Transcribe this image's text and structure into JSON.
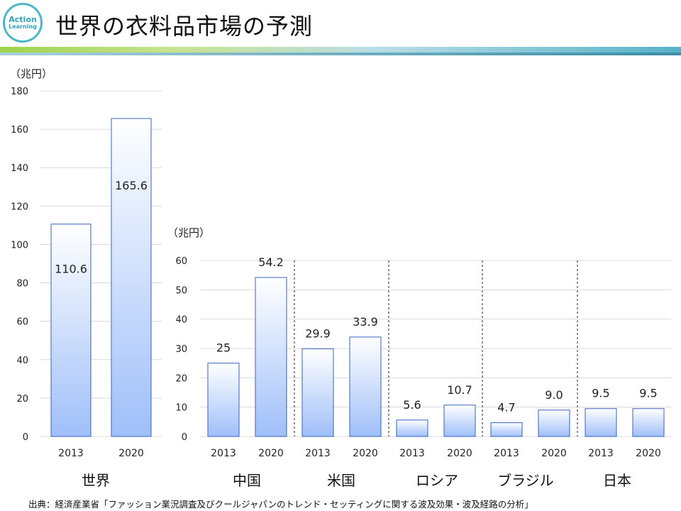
{
  "header": {
    "title": "世界の衣料品市場の予測",
    "logo_line1": "Action",
    "logo_line2": "Learning"
  },
  "theme": {
    "bar_top": "#ffffff",
    "bar_bottom": "#9fbff9",
    "bar_stroke": "#3a62c0",
    "grid": "#d9d9d9"
  },
  "chart_data": [
    {
      "type": "bar",
      "title": "",
      "ylabel": "（兆円）",
      "ylim": [
        0,
        180
      ],
      "yticks": [
        0,
        20,
        40,
        60,
        80,
        100,
        120,
        140,
        160,
        180
      ],
      "groups": [
        {
          "name": "世界",
          "categories": [
            "2013",
            "2020"
          ],
          "values": [
            110.6,
            165.6
          ],
          "labels": [
            "110.6",
            "165.6"
          ]
        }
      ]
    },
    {
      "type": "bar",
      "title": "",
      "ylabel": "（兆円）",
      "ylim": [
        0,
        60
      ],
      "yticks": [
        0,
        10,
        20,
        30,
        40,
        50,
        60
      ],
      "groups": [
        {
          "name": "中国",
          "categories": [
            "2013",
            "2020"
          ],
          "values": [
            25,
            54.2
          ],
          "labels": [
            "25",
            "54.2"
          ]
        },
        {
          "name": "米国",
          "categories": [
            "2013",
            "2020"
          ],
          "values": [
            29.9,
            33.9
          ],
          "labels": [
            "29.9",
            "33.9"
          ]
        },
        {
          "name": "ロシア",
          "categories": [
            "2013",
            "2020"
          ],
          "values": [
            5.6,
            10.7
          ],
          "labels": [
            "5.6",
            "10.7"
          ]
        },
        {
          "name": "ブラジル",
          "categories": [
            "2013",
            "2020"
          ],
          "values": [
            4.7,
            9.0
          ],
          "labels": [
            "4.7",
            "9.0"
          ]
        },
        {
          "name": "日本",
          "categories": [
            "2013",
            "2020"
          ],
          "values": [
            9.5,
            9.5
          ],
          "labels": [
            "9.5",
            "9.5"
          ]
        }
      ]
    }
  ],
  "footer": {
    "source": "出典：経済産業省「ファッション業況調査及びクールジャパンのトレンド・セッティングに関する波及効果・波及経路の分析」"
  }
}
